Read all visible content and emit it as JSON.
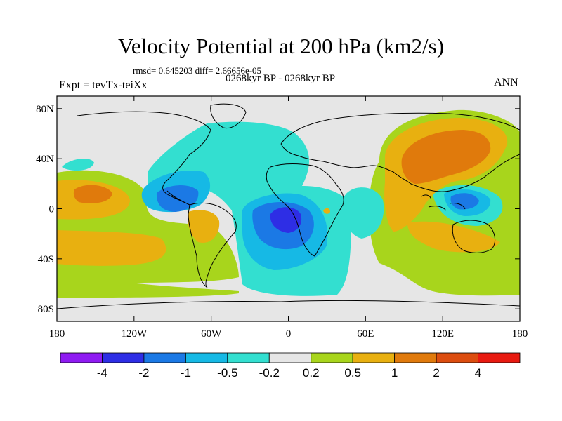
{
  "title": "Velocity Potential at 200 hPa (km2/s)",
  "stats": "rmsd= 0.645203 diff= 2.66656e-05",
  "period": "0268kyr BP - 0268kyr BP",
  "expt": "Expt = tevTx-teiXx",
  "season": "ANN",
  "map": {
    "projection": "cylindrical-equidistant",
    "lon_range": [
      -180,
      180
    ],
    "lat_range": [
      -90,
      90
    ],
    "lat_ticks": [
      {
        "label": "80N",
        "lat": 80
      },
      {
        "label": "40N",
        "lat": 40
      },
      {
        "label": "0",
        "lat": 0
      },
      {
        "label": "40S",
        "lat": -40
      },
      {
        "label": "80S",
        "lat": -80
      }
    ],
    "lon_ticks": [
      {
        "label": "180",
        "lon": -180
      },
      {
        "label": "120W",
        "lon": -120
      },
      {
        "label": "60W",
        "lon": -60
      },
      {
        "label": "0",
        "lon": 0
      },
      {
        "label": "60E",
        "lon": 60
      },
      {
        "label": "120E",
        "lon": 120
      },
      {
        "label": "180",
        "lon": 180
      }
    ],
    "background_color": "#e6e6e6"
  },
  "colorbar": {
    "colors": [
      "#8f1bf2",
      "#2e2ee5",
      "#1b79e5",
      "#16b9e5",
      "#33dfd0",
      "#e6e6e6",
      "#a8d51c",
      "#e8b010",
      "#e07a0c",
      "#dc4d0f",
      "#e81a10"
    ],
    "labels": [
      "-4",
      "-2",
      "-1",
      "-0.5",
      "-0.2",
      "0.2",
      "0.5",
      "1",
      "2",
      "4"
    ]
  }
}
